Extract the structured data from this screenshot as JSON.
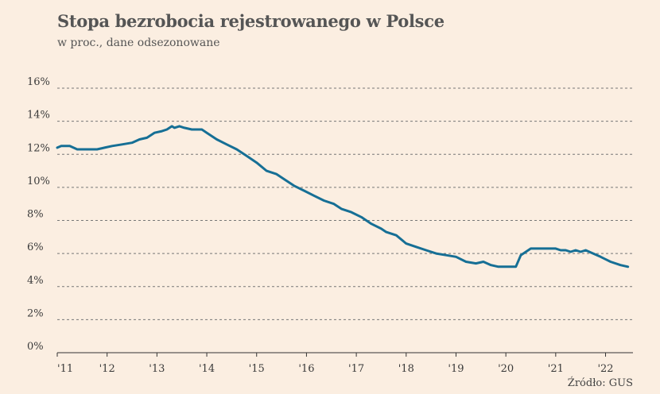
{
  "title": "Stopa bezrobocia rejestrowanego w Polsce",
  "subtitle": "w proc., dane odsezonowane",
  "source": "Źródło: GUS",
  "colors": {
    "background": "#fbeee1",
    "line": "#166f95",
    "grid": "#777777"
  },
  "chart_data": {
    "type": "line",
    "title": "Stopa bezrobocia rejestrowanego w Polsce",
    "subtitle": "w proc., dane odsezonowane",
    "xlabel": "",
    "ylabel": "",
    "ylim": [
      0,
      16
    ],
    "xlim": [
      2011.0,
      2022.55
    ],
    "y_ticks": [
      0,
      2,
      4,
      6,
      8,
      10,
      12,
      14,
      16
    ],
    "y_tick_labels": [
      "0%",
      "2%",
      "4%",
      "6%",
      "8%",
      "10%",
      "12%",
      "14%",
      "16%"
    ],
    "x_ticks": [
      2011,
      2012,
      2013,
      2014,
      2015,
      2016,
      2017,
      2018,
      2019,
      2020,
      2021,
      2022
    ],
    "x_tick_labels": [
      "'11",
      "'12",
      "'13",
      "'14",
      "'15",
      "'16",
      "'17",
      "'18",
      "'19",
      "'20",
      "'21",
      "'22"
    ],
    "grid": "horizontal dashed",
    "series": [
      {
        "x": [
          2011.0,
          2011.08,
          2011.25,
          2011.4,
          2011.6,
          2011.8,
          2011.95,
          2012.1,
          2012.3,
          2012.5,
          2012.65,
          2012.8,
          2012.95,
          2013.1,
          2013.2,
          2013.3,
          2013.35,
          2013.45,
          2013.55,
          2013.7,
          2013.9,
          2014.0,
          2014.2,
          2014.4,
          2014.6,
          2014.8,
          2015.0,
          2015.2,
          2015.4,
          2015.55,
          2015.75,
          2015.95,
          2016.15,
          2016.35,
          2016.55,
          2016.7,
          2016.9,
          2017.1,
          2017.3,
          2017.5,
          2017.6,
          2017.8,
          2018.0,
          2018.2,
          2018.4,
          2018.6,
          2018.8,
          2019.0,
          2019.2,
          2019.4,
          2019.55,
          2019.7,
          2019.85,
          2020.0,
          2020.1,
          2020.2,
          2020.3,
          2020.5,
          2020.7,
          2020.85,
          2021.0,
          2021.1,
          2021.2,
          2021.3,
          2021.4,
          2021.5,
          2021.6,
          2021.75,
          2021.9,
          2022.1,
          2022.3,
          2022.45
        ],
        "values": [
          12.4,
          12.5,
          12.5,
          12.3,
          12.3,
          12.3,
          12.4,
          12.5,
          12.6,
          12.7,
          12.9,
          13.0,
          13.3,
          13.4,
          13.5,
          13.7,
          13.6,
          13.7,
          13.6,
          13.5,
          13.5,
          13.3,
          12.9,
          12.6,
          12.3,
          11.9,
          11.5,
          11.0,
          10.8,
          10.5,
          10.1,
          9.8,
          9.5,
          9.2,
          9.0,
          8.7,
          8.5,
          8.2,
          7.8,
          7.5,
          7.3,
          7.1,
          6.6,
          6.4,
          6.2,
          6.0,
          5.9,
          5.8,
          5.5,
          5.4,
          5.5,
          5.3,
          5.2,
          5.2,
          5.2,
          5.2,
          5.9,
          6.3,
          6.3,
          6.3,
          6.3,
          6.2,
          6.2,
          6.1,
          6.2,
          6.1,
          6.2,
          6.0,
          5.8,
          5.5,
          5.3,
          5.2
        ]
      }
    ]
  }
}
